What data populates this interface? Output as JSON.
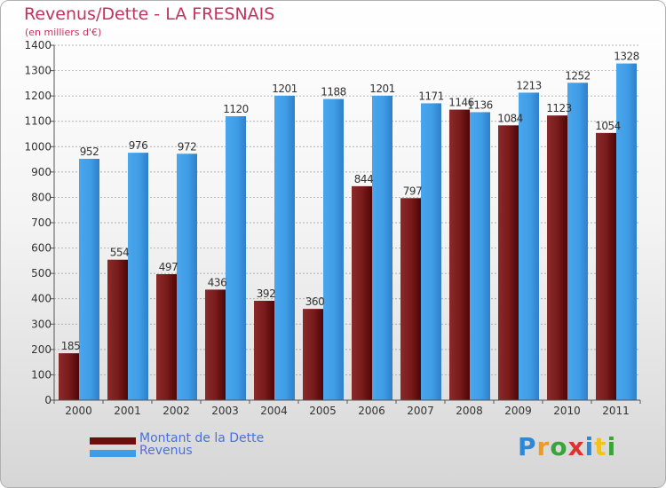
{
  "title": "Revenus/Dette - LA FRESNAIS",
  "subtitle": "(en milliers d'€)",
  "logo": {
    "text": "Proxiti",
    "letter_colors": [
      "#2e88d8",
      "#f29a1f",
      "#3aa43a",
      "#e0322d",
      "#2e88d8",
      "#f2c21f",
      "#3aa43a"
    ]
  },
  "colors": {
    "dette": "#7a1c1c",
    "revenus": "#3f9de6",
    "title": "#c0335f",
    "legend_text": "#4a6fe0"
  },
  "legend": [
    {
      "label": "Montant de la Dette",
      "color": "#6a0e0e"
    },
    {
      "label": "Revenus",
      "color": "#3f9de6"
    }
  ],
  "chart_data": {
    "type": "bar",
    "categories": [
      "2000",
      "2001",
      "2002",
      "2003",
      "2004",
      "2005",
      "2006",
      "2007",
      "2008",
      "2009",
      "2010",
      "2011"
    ],
    "series": [
      {
        "name": "Montant de la Dette",
        "values": [
          185,
          554,
          497,
          436,
          392,
          360,
          844,
          797,
          1146,
          1084,
          1123,
          1054
        ]
      },
      {
        "name": "Revenus",
        "values": [
          952,
          976,
          972,
          1120,
          1201,
          1188,
          1201,
          1171,
          1136,
          1213,
          1252,
          1328
        ]
      }
    ],
    "ylim": [
      0,
      1400
    ],
    "yticks": [
      0,
      100,
      200,
      300,
      400,
      500,
      600,
      700,
      800,
      900,
      1000,
      1100,
      1200,
      1300,
      1400
    ],
    "grid": true,
    "legend_position": "bottom-left"
  }
}
